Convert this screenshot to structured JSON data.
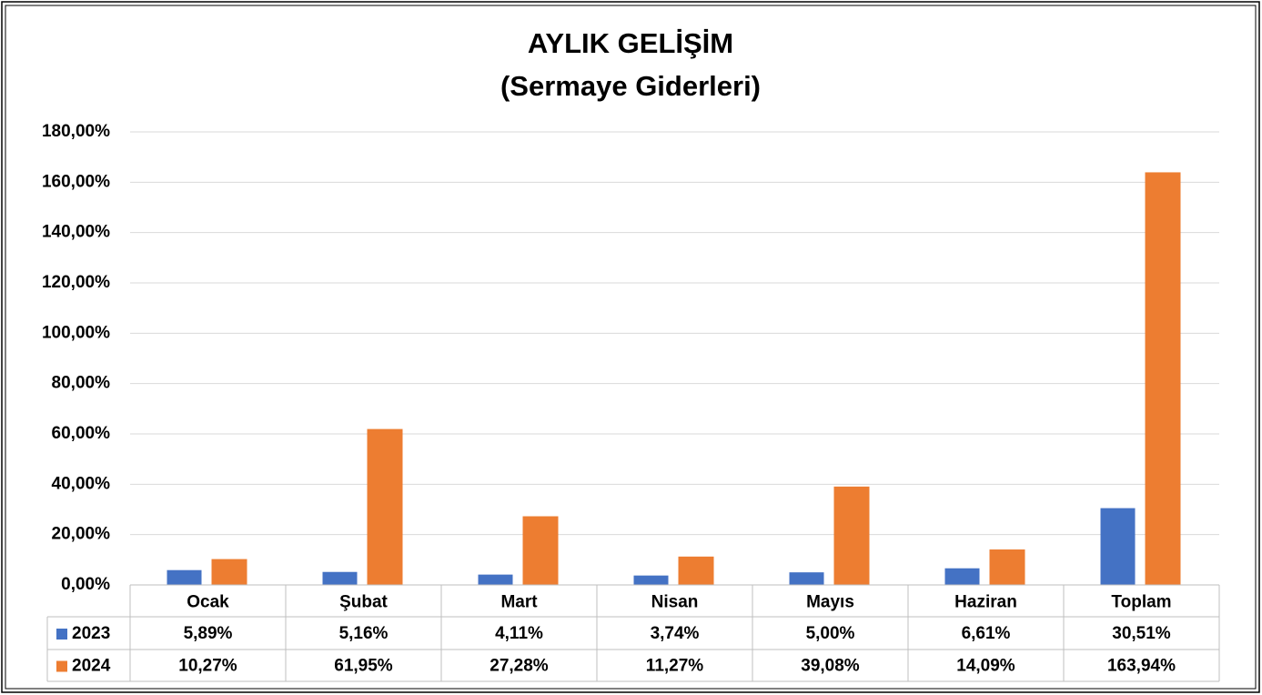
{
  "chart_data": {
    "type": "bar",
    "title": "AYLIK GELİŞİM",
    "subtitle": "(Sermaye Giderleri)",
    "categories": [
      "Ocak",
      "Şubat",
      "Mart",
      "Nisan",
      "Mayıs",
      "Haziran",
      "Toplam"
    ],
    "series": [
      {
        "name": "2023",
        "color": "#4472c4",
        "values": [
          5.89,
          5.16,
          4.11,
          3.74,
          5.0,
          6.61,
          30.51
        ],
        "value_labels": [
          "5,89%",
          "5,16%",
          "4,11%",
          "3,74%",
          "5,00%",
          "6,61%",
          "30,51%"
        ]
      },
      {
        "name": "2024",
        "color": "#ed7d31",
        "values": [
          10.27,
          61.95,
          27.28,
          11.27,
          39.08,
          14.09,
          163.94
        ],
        "value_labels": [
          "10,27%",
          "61,95%",
          "27,28%",
          "11,27%",
          "39,08%",
          "14,09%",
          "163,94%"
        ]
      }
    ],
    "ylim": [
      0,
      180
    ],
    "yticks": [
      {
        "value": 0,
        "label": "0,00%"
      },
      {
        "value": 20,
        "label": "20,00%"
      },
      {
        "value": 40,
        "label": "40,00%"
      },
      {
        "value": 60,
        "label": "60,00%"
      },
      {
        "value": 80,
        "label": "80,00%"
      },
      {
        "value": 100,
        "label": "100,00%"
      },
      {
        "value": 120,
        "label": "120,00%"
      },
      {
        "value": 140,
        "label": "140,00%"
      },
      {
        "value": 160,
        "label": "160,00%"
      },
      {
        "value": 180,
        "label": "180,00%"
      }
    ],
    "grid": true,
    "data_table": true
  }
}
